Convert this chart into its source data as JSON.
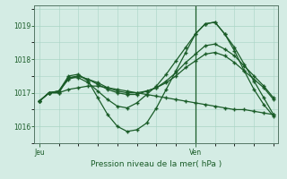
{
  "bg_color": "#d4ece4",
  "grid_color": "#a8d4c4",
  "line_color": "#1a5c28",
  "title": "Pression niveau de la mer( hPa )",
  "xlabel_jeu": "Jeu",
  "xlabel_ven": "Ven",
  "ylim": [
    1015.5,
    1019.6
  ],
  "yticks": [
    1016,
    1017,
    1018,
    1019
  ],
  "n_points": 25,
  "ven_idx": 16,
  "series_main": [
    1016.75,
    1017.0,
    1017.0,
    1017.45,
    1017.45,
    1017.3,
    1017.05,
    1016.8,
    1016.6,
    1016.55,
    1016.7,
    1016.95,
    1017.2,
    1017.55,
    1017.95,
    1018.35,
    1018.75,
    1019.05,
    1019.1,
    1018.75,
    1018.35,
    1017.85,
    1017.35,
    1016.85,
    1016.35
  ],
  "series_wavy": [
    1016.75,
    1017.0,
    1017.05,
    1017.5,
    1017.55,
    1017.35,
    1016.85,
    1016.35,
    1016.0,
    1015.85,
    1015.9,
    1016.1,
    1016.55,
    1017.1,
    1017.65,
    1018.2,
    1018.75,
    1019.05,
    1019.1,
    1018.75,
    1018.25,
    1017.65,
    1017.1,
    1016.65,
    1016.3
  ],
  "series_mid1": [
    1016.75,
    1017.0,
    1017.05,
    1017.45,
    1017.5,
    1017.4,
    1017.25,
    1017.1,
    1017.0,
    1016.95,
    1016.95,
    1017.05,
    1017.15,
    1017.35,
    1017.6,
    1017.9,
    1018.15,
    1018.4,
    1018.45,
    1018.3,
    1018.1,
    1017.8,
    1017.5,
    1017.2,
    1016.85
  ],
  "series_mid2": [
    1016.75,
    1017.0,
    1017.05,
    1017.4,
    1017.5,
    1017.4,
    1017.3,
    1017.15,
    1017.05,
    1017.0,
    1017.0,
    1017.05,
    1017.15,
    1017.3,
    1017.5,
    1017.75,
    1017.95,
    1018.15,
    1018.2,
    1018.1,
    1017.9,
    1017.65,
    1017.4,
    1017.15,
    1016.8
  ],
  "series_flat": [
    1016.75,
    1017.0,
    1017.0,
    1017.1,
    1017.15,
    1017.2,
    1017.2,
    1017.15,
    1017.1,
    1017.05,
    1017.0,
    1016.95,
    1016.9,
    1016.85,
    1016.8,
    1016.75,
    1016.7,
    1016.65,
    1016.6,
    1016.55,
    1016.5,
    1016.5,
    1016.45,
    1016.4,
    1016.35
  ]
}
